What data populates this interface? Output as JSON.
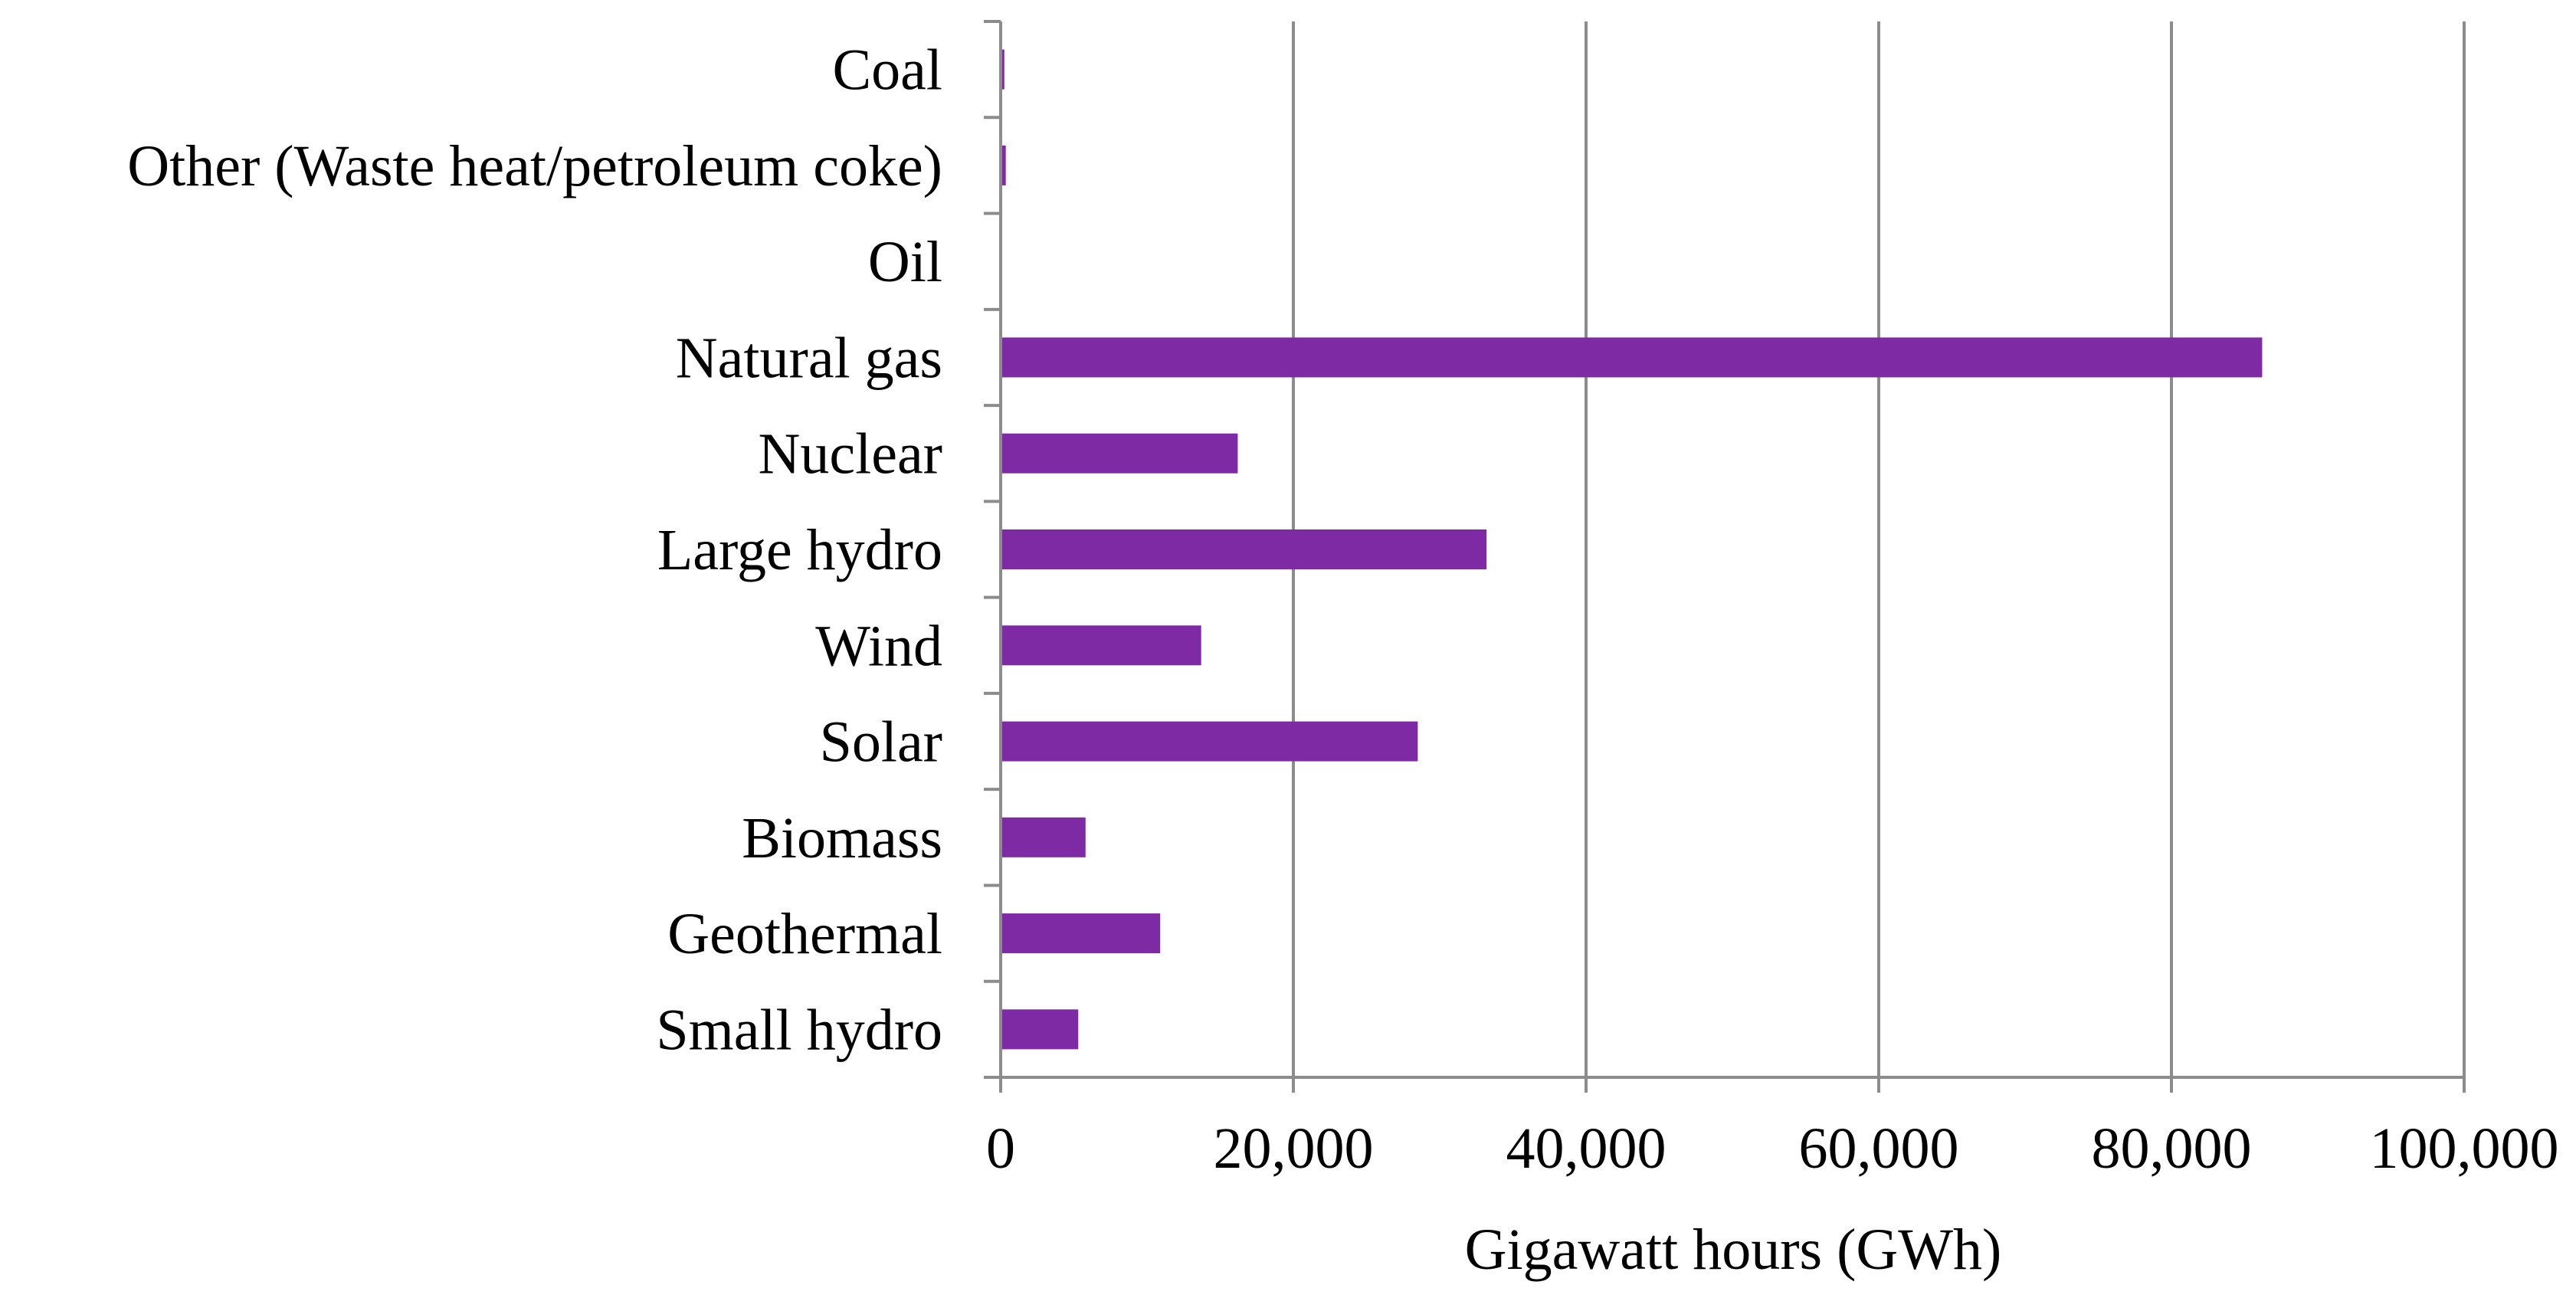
{
  "chart_data": {
    "type": "bar",
    "orientation": "horizontal",
    "categories": [
      "Small hydro",
      "Geothermal",
      "Biomass",
      "Solar",
      "Wind",
      "Large hydro",
      "Nuclear",
      "Natural gas",
      "Oil",
      "Other (Waste heat/petroleum coke)",
      "Coal"
    ],
    "values": [
      5300,
      10900,
      5800,
      28500,
      13700,
      33200,
      16200,
      86200,
      40,
      350,
      250
    ],
    "xlabel": "Gigawatt hours (GWh)",
    "ylabel": "",
    "xlim": [
      0,
      100000
    ],
    "xticks": [
      0,
      20000,
      40000,
      60000,
      80000,
      100000
    ],
    "xtick_labels": [
      "0",
      "20,000",
      "40,000",
      "60,000",
      "80,000",
      "100,000"
    ],
    "grid": "vertical major gridlines",
    "legend": "none",
    "bar_color": "#7F2AA5",
    "grid_color": "#8C8C8C"
  }
}
